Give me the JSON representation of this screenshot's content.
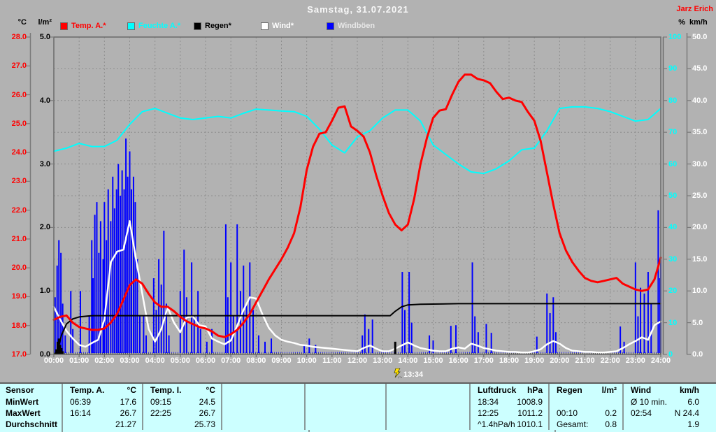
{
  "window": {
    "title": "Samstag, 31.07.2021",
    "station": "Jarz Erich"
  },
  "colors": {
    "background": "#b2b2b2",
    "grid": "#8d8d8d",
    "frame": "#6b6b6b",
    "axis_line": "#7a7a7a",
    "temp": "#ff0000",
    "humidity": "#00ffff",
    "rain": "#000000",
    "wind": "#ffffff",
    "gusts": "#0000ff",
    "table_bg": "#ccffff",
    "marker_icon": "#ffe000",
    "time_text": "#ffffff"
  },
  "legend": [
    {
      "label": "Temp. A.*",
      "swatch": "#ff0000",
      "text_color": "#ff0000"
    },
    {
      "label": "Feuchte A.*",
      "swatch": "#00ffff",
      "text_color": "#00ffff"
    },
    {
      "label": "Regen*",
      "swatch": "#000000",
      "text_color": "#000000"
    },
    {
      "label": "Wind*",
      "swatch": "#ffffff",
      "text_color": "#ffffff"
    },
    {
      "label": "Windböen",
      "swatch": "#0000ff",
      "text_color": "#e8e8e8"
    }
  ],
  "axes": {
    "temp": {
      "header": "°C",
      "color": "#ff0000",
      "min": 17,
      "max": 28,
      "ticks": [
        "28.0",
        "27.0",
        "26.0",
        "25.0",
        "24.0",
        "23.0",
        "22.0",
        "21.0",
        "20.0",
        "19.0",
        "18.0",
        "17.0"
      ]
    },
    "rain": {
      "header": "l/m²",
      "color": "#000000",
      "min": 0,
      "max": 5,
      "ticks": [
        "5.0",
        "4.0",
        "3.0",
        "2.0",
        "1.0",
        "0.0"
      ]
    },
    "humidity": {
      "header": "%",
      "color": "#00ffff",
      "min": 0,
      "max": 100,
      "ticks": [
        "100",
        "90",
        "80",
        "70",
        "60",
        "50",
        "40",
        "30",
        "20",
        "10",
        "0"
      ]
    },
    "wind": {
      "header": "km/h",
      "color": "#ffffff",
      "min": 0,
      "max": 50,
      "ticks": [
        "50.0",
        "45.0",
        "40.0",
        "35.0",
        "30.0",
        "25.0",
        "20.0",
        "15.0",
        "10.0",
        "5.0",
        "0.0"
      ]
    },
    "time": {
      "ticks": [
        "00:00",
        "01:00",
        "02:00",
        "03:00",
        "04:00",
        "05:00",
        "06:00",
        "07:00",
        "08:00",
        "09:00",
        "10:00",
        "11:00",
        "12:00",
        "13:00",
        "14:00",
        "15:00",
        "16:00",
        "17:00",
        "18:00",
        "19:00",
        "20:00",
        "21:00",
        "22:00",
        "23:00",
        "24:00"
      ]
    }
  },
  "marker": {
    "time_label": "13:34"
  },
  "chart_data": {
    "type": "line",
    "title": "Samstag, 31.07.2021",
    "x_unit": "hours",
    "x_range": [
      0,
      24
    ],
    "grid": true,
    "legend_position": "top",
    "series": [
      {
        "name": "Windböen",
        "unit": "km/h",
        "axis": "wind",
        "color": "#0000ff",
        "render": "spikes",
        "width": 2,
        "points": [
          [
            0.05,
            9
          ],
          [
            0.13,
            14
          ],
          [
            0.2,
            18
          ],
          [
            0.28,
            16
          ],
          [
            0.35,
            8
          ],
          [
            0.45,
            3
          ],
          [
            0.67,
            10
          ],
          [
            0.75,
            4
          ],
          [
            1.05,
            10
          ],
          [
            1.4,
            6
          ],
          [
            1.5,
            18
          ],
          [
            1.55,
            12
          ],
          [
            1.62,
            22
          ],
          [
            1.7,
            24
          ],
          [
            1.78,
            16
          ],
          [
            1.85,
            21
          ],
          [
            1.95,
            15
          ],
          [
            2.0,
            24
          ],
          [
            2.08,
            18
          ],
          [
            2.15,
            26
          ],
          [
            2.25,
            21
          ],
          [
            2.33,
            28
          ],
          [
            2.4,
            23
          ],
          [
            2.48,
            26
          ],
          [
            2.55,
            30
          ],
          [
            2.63,
            25
          ],
          [
            2.7,
            29
          ],
          [
            2.78,
            26
          ],
          [
            2.85,
            34
          ],
          [
            2.92,
            28
          ],
          [
            3.0,
            32
          ],
          [
            3.07,
            26
          ],
          [
            3.15,
            28
          ],
          [
            3.22,
            24
          ],
          [
            3.3,
            15
          ],
          [
            3.4,
            6
          ],
          [
            3.55,
            6
          ],
          [
            3.65,
            3
          ],
          [
            3.95,
            12
          ],
          [
            4.05,
            7
          ],
          [
            4.15,
            15
          ],
          [
            4.25,
            11
          ],
          [
            4.35,
            19.5
          ],
          [
            4.45,
            8
          ],
          [
            4.55,
            3
          ],
          [
            5.0,
            10
          ],
          [
            5.15,
            16.5
          ],
          [
            5.25,
            9
          ],
          [
            5.45,
            14.5
          ],
          [
            5.55,
            6
          ],
          [
            5.7,
            10
          ],
          [
            5.8,
            4
          ],
          [
            6.05,
            2
          ],
          [
            6.25,
            4
          ],
          [
            6.8,
            20.5
          ],
          [
            6.88,
            9
          ],
          [
            7.0,
            14.5
          ],
          [
            7.1,
            6
          ],
          [
            7.25,
            20.5
          ],
          [
            7.38,
            10
          ],
          [
            7.5,
            14
          ],
          [
            7.62,
            8
          ],
          [
            7.75,
            14.5
          ],
          [
            7.88,
            7
          ],
          [
            8.1,
            3
          ],
          [
            8.35,
            2
          ],
          [
            8.6,
            2.5
          ],
          [
            9.9,
            1.5
          ],
          [
            10.1,
            2.5
          ],
          [
            10.35,
            1.5
          ],
          [
            12.2,
            3
          ],
          [
            12.3,
            6.3
          ],
          [
            12.45,
            4
          ],
          [
            12.6,
            5.5
          ],
          [
            13.78,
            13
          ],
          [
            13.88,
            7
          ],
          [
            14.05,
            13
          ],
          [
            14.15,
            5
          ],
          [
            14.85,
            3
          ],
          [
            15.0,
            2.2
          ],
          [
            15.7,
            4.5
          ],
          [
            15.9,
            4.6
          ],
          [
            16.55,
            14.5
          ],
          [
            16.65,
            6
          ],
          [
            16.78,
            3.5
          ],
          [
            17.1,
            4.8
          ],
          [
            17.3,
            3.4
          ],
          [
            19.1,
            2.8
          ],
          [
            19.5,
            9.6
          ],
          [
            19.62,
            6.5
          ],
          [
            19.75,
            9
          ],
          [
            19.85,
            3.5
          ],
          [
            22.4,
            4.4
          ],
          [
            22.55,
            2
          ],
          [
            23.0,
            14.5
          ],
          [
            23.1,
            6
          ],
          [
            23.2,
            10.5
          ],
          [
            23.35,
            9.6
          ],
          [
            23.5,
            13
          ],
          [
            23.62,
            8
          ],
          [
            23.9,
            22.7
          ],
          [
            23.97,
            12
          ],
          [
            24.0,
            15
          ]
        ]
      },
      {
        "name": "Wind",
        "unit": "km/h",
        "axis": "wind",
        "color": "#ffffff",
        "render": "line",
        "width": 2.5,
        "x0": 0,
        "dx": 0.25,
        "values": [
          7.5,
          5.5,
          3.7,
          2.5,
          1.5,
          1.2,
          1.8,
          2.3,
          5.5,
          14.5,
          16.2,
          16.5,
          21.0,
          15.0,
          9.5,
          4.0,
          2.0,
          4.0,
          7.4,
          5.0,
          3.5,
          5.8,
          6.0,
          4.6,
          4.4,
          2.5,
          2.0,
          1.6,
          2.2,
          4.5,
          7.0,
          9.0,
          8.8,
          6.3,
          4.2,
          3.0,
          2.3,
          2.0,
          1.8,
          1.5,
          1.4,
          1.2,
          1.1,
          1.0,
          0.9,
          0.8,
          0.7,
          0.6,
          0.5,
          1.0,
          1.4,
          0.9,
          0.5,
          0.5,
          0.9,
          1.4,
          1.9,
          1.4,
          1.0,
          0.8,
          0.6,
          0.5,
          0.5,
          0.9,
          1.1,
          0.9,
          1.7,
          1.4,
          1.0,
          0.8,
          0.6,
          0.5,
          0.4,
          0.4,
          0.3,
          0.3,
          0.5,
          0.8,
          1.6,
          2.1,
          1.7,
          1.0,
          0.6,
          0.5,
          0.4,
          0.4,
          0.3,
          0.3,
          0.4,
          0.5,
          1.0,
          1.6,
          2.1,
          2.7,
          2.3,
          4.6,
          5.2
        ]
      },
      {
        "name": "Regen kumuliert",
        "unit": "l/m²",
        "axis": "rain",
        "color": "#000000",
        "render": "line",
        "width": 2,
        "points": [
          [
            0,
            0
          ],
          [
            0.15,
            0.05
          ],
          [
            0.3,
            0.3
          ],
          [
            0.5,
            0.48
          ],
          [
            0.75,
            0.56
          ],
          [
            1.0,
            0.59
          ],
          [
            1.5,
            0.61
          ],
          [
            13.3,
            0.61
          ],
          [
            13.5,
            0.68
          ],
          [
            13.75,
            0.75
          ],
          [
            14.0,
            0.78
          ],
          [
            14.5,
            0.79
          ],
          [
            16.0,
            0.8
          ],
          [
            24,
            0.8
          ]
        ]
      },
      {
        "name": "Regen Intervall",
        "unit": "l/m²",
        "axis": "rain",
        "color": "#000000",
        "render": "bars",
        "width": 3,
        "points": [
          [
            0.1,
            0.08
          ],
          [
            0.15,
            0.2
          ],
          [
            0.2,
            0.25
          ],
          [
            0.25,
            0.15
          ],
          [
            0.3,
            0.1
          ],
          [
            0.35,
            0.05
          ],
          [
            13.5,
            0.2
          ]
        ]
      },
      {
        "name": "Feuchte A.",
        "unit": "%",
        "axis": "humidity",
        "color": "#00ffff",
        "render": "line",
        "width": 2,
        "x0": 0,
        "dx": 0.5,
        "values": [
          64,
          65,
          66.5,
          65.5,
          65.5,
          67.5,
          72.5,
          76.5,
          77.5,
          76,
          74.5,
          74,
          74.5,
          75,
          74.5,
          76,
          77.3,
          77,
          76.7,
          76.5,
          75,
          71,
          66,
          63.5,
          68.5,
          70.5,
          74.5,
          77,
          77,
          73.5,
          66,
          63,
          60,
          57.5,
          57,
          58.5,
          61,
          64.5,
          65,
          70.5,
          77.5,
          78,
          78,
          77.5,
          76.5,
          75,
          73.5,
          74,
          77.5
        ]
      },
      {
        "name": "Temp. A.",
        "unit": "°C",
        "axis": "temp",
        "color": "#ff0000",
        "render": "line",
        "width": 3,
        "x0": 0,
        "dx": 0.25,
        "values": [
          18.2,
          18.3,
          18.35,
          18.1,
          17.95,
          17.9,
          17.85,
          17.85,
          17.9,
          18.1,
          18.4,
          18.9,
          19.4,
          19.6,
          19.45,
          19.1,
          18.8,
          18.65,
          18.65,
          18.5,
          18.3,
          18.15,
          18.05,
          17.95,
          17.9,
          17.8,
          17.65,
          17.6,
          17.7,
          17.85,
          18.1,
          18.4,
          18.8,
          19.2,
          19.6,
          19.95,
          20.3,
          20.7,
          21.2,
          22.1,
          23.4,
          24.2,
          24.65,
          24.7,
          25.1,
          25.55,
          25.6,
          24.9,
          24.75,
          24.55,
          24.0,
          23.2,
          22.5,
          21.9,
          21.5,
          21.3,
          21.5,
          22.4,
          23.6,
          24.5,
          25.2,
          25.45,
          25.5,
          26.0,
          26.45,
          26.7,
          26.7,
          26.55,
          26.5,
          26.4,
          26.1,
          25.85,
          25.9,
          25.8,
          25.75,
          25.4,
          25.1,
          24.4,
          23.3,
          22.2,
          21.2,
          20.6,
          20.2,
          19.9,
          19.65,
          19.55,
          19.5,
          19.55,
          19.6,
          19.65,
          19.45,
          19.35,
          19.25,
          19.2,
          19.25,
          19.6,
          20.35
        ]
      }
    ]
  },
  "table": {
    "row_labels": [
      "Sensor",
      "MinWert",
      "MaxWert",
      "Durchschnitt"
    ],
    "groups": [
      {
        "name": "Temp. A.",
        "unit": "°C",
        "rows": [
          [
            "06:39",
            "17.6"
          ],
          [
            "16:14",
            "26.7"
          ],
          [
            "",
            "21.27"
          ]
        ]
      },
      {
        "name": "Temp. I.",
        "unit": "°C",
        "rows": [
          [
            "09:15",
            "24.5"
          ],
          [
            "22:25",
            "26.7"
          ],
          [
            "",
            "25.73"
          ]
        ]
      },
      {
        "name": "",
        "unit": "",
        "rows": [
          [
            "",
            ""
          ],
          [
            "",
            ""
          ],
          [
            "",
            ""
          ]
        ]
      },
      {
        "name": "",
        "unit": "",
        "rows": [
          [
            "",
            ""
          ],
          [
            "",
            ""
          ],
          [
            "",
            ""
          ]
        ]
      },
      {
        "name": "",
        "unit": "",
        "rows": [
          [
            "",
            ""
          ],
          [
            "",
            ""
          ],
          [
            "",
            ""
          ]
        ]
      },
      {
        "name": "Luftdruck",
        "unit": "hPa",
        "rows": [
          [
            "18:34",
            "1008.9"
          ],
          [
            "12:25",
            "1011.2"
          ],
          [
            "^1.4hPa/h",
            "1010.1"
          ]
        ]
      },
      {
        "name": "Regen",
        "unit": "l/m²",
        "rows": [
          [
            "",
            ""
          ],
          [
            "00:10",
            "0.2"
          ],
          [
            "Gesamt:",
            "0.8"
          ]
        ]
      },
      {
        "name": "Wind",
        "unit": "km/h",
        "rows": [
          [
            "Ø 10 min.",
            "6.0"
          ],
          [
            "02:54",
            "N 24.4"
          ],
          [
            "",
            "1.9"
          ]
        ]
      }
    ]
  }
}
